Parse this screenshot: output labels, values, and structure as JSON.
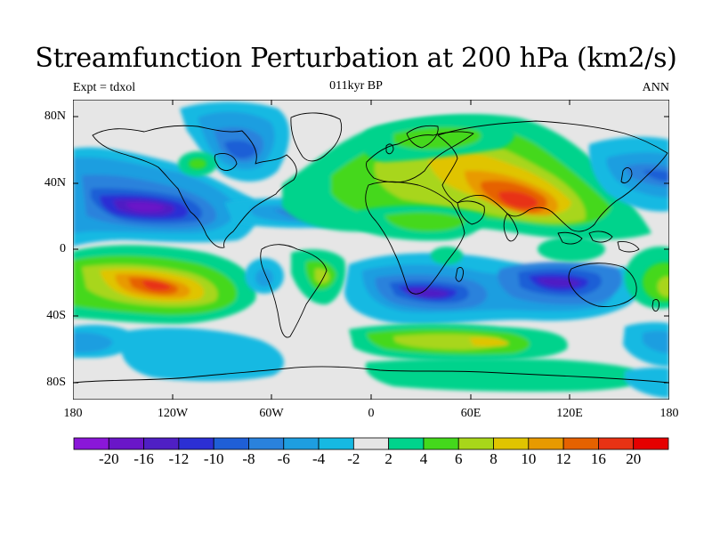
{
  "title": "Streamfunction Perturbation at 200 hPa (km2/s)",
  "subtitle_left": "Expt = tdxol",
  "subtitle_center": "011kyr BP",
  "subtitle_right": "ANN",
  "lat_labels": [
    "80N",
    "40N",
    "0",
    "40S",
    "80S"
  ],
  "lon_labels": [
    "180",
    "120W",
    "60W",
    "0",
    "60E",
    "120E",
    "180"
  ],
  "colorbar": {
    "labels": [
      "-20",
      "-16",
      "-12",
      "-10",
      "-8",
      "-6",
      "-4",
      "-2",
      "2",
      "4",
      "6",
      "8",
      "10",
      "12",
      "16",
      "20"
    ],
    "colors": [
      "#8a17d8",
      "#6a16c8",
      "#4f1fc4",
      "#2c2fd4",
      "#1f5fd6",
      "#2a82dc",
      "#1e9ee0",
      "#16b9e2",
      "#e6e6e6",
      "#00d38c",
      "#44d81c",
      "#a8d61a",
      "#e0c400",
      "#e89a00",
      "#e66200",
      "#e83214",
      "#e60000"
    ]
  }
}
